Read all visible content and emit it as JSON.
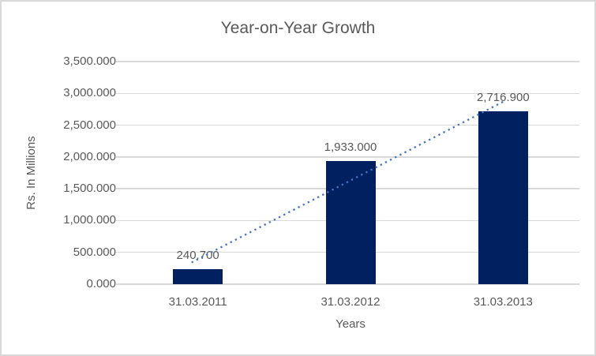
{
  "chart_data": {
    "type": "bar",
    "title": "Year-on-Year Growth",
    "xlabel": "Years",
    "ylabel": "Rs. In Millions",
    "categories": [
      "31.03.2011",
      "31.03.2012",
      "31.03.2013"
    ],
    "values": [
      240.7,
      1933.0,
      2716.9
    ],
    "data_labels": [
      "240.700",
      "1,933.000",
      "2,716.900"
    ],
    "ytick_labels": [
      "3,500.000",
      "3,000.000",
      "2,500.000",
      "2,000.000",
      "1,500.000",
      "1,000.000",
      "500.000",
      "0.000"
    ],
    "ylim": [
      0,
      3500
    ],
    "ytick_step": 500,
    "grid": true,
    "legend": "none",
    "trendline": {
      "type": "linear",
      "style": "dotted"
    },
    "colors": {
      "bar": "#002060",
      "trendline": "#4472C4",
      "gridline": "#D9D9D9",
      "text": "#595959",
      "border": "#D9D9D9",
      "background": "#FFFFFF"
    }
  }
}
